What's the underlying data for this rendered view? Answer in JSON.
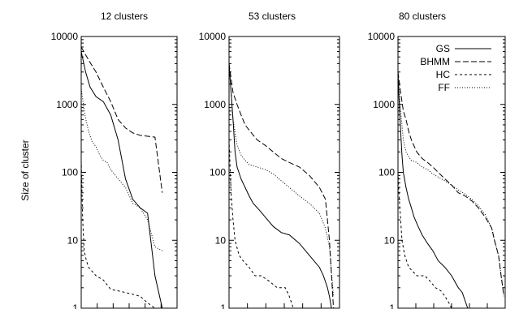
{
  "chart_data": [
    {
      "type": "line",
      "title": "12 clusters",
      "ylabel": "Size of cluster",
      "yscale": "log",
      "ylim": [
        1,
        10000
      ],
      "yticks": [
        1,
        10,
        100,
        1000,
        10000
      ],
      "ytick_labels": [
        "1",
        "10",
        "100",
        "1000",
        "10000"
      ],
      "xlim": [
        0,
        13
      ],
      "xtick_count": 6,
      "series": [
        {
          "name": "GS",
          "x": [
            0,
            0.6,
            1.2,
            2,
            3,
            4,
            5,
            6,
            7,
            8,
            9,
            10,
            11
          ],
          "y": [
            6000,
            3000,
            1800,
            1300,
            1100,
            700,
            300,
            80,
            40,
            30,
            25,
            3,
            1
          ]
        },
        {
          "name": "BHMM",
          "x": [
            0,
            1,
            2,
            3,
            4,
            5,
            6,
            7,
            8,
            9,
            10,
            11
          ],
          "y": [
            7000,
            4500,
            3000,
            1800,
            1100,
            600,
            450,
            380,
            350,
            340,
            330,
            50
          ]
        },
        {
          "name": "HC",
          "x": [
            0,
            0.2,
            0.4,
            0.7,
            1,
            2,
            3,
            4,
            5,
            6,
            7,
            8,
            9,
            10,
            11
          ],
          "y": [
            150,
            20,
            7,
            5,
            4,
            3,
            2.6,
            1.9,
            1.8,
            1.7,
            1.6,
            1.5,
            1.2,
            1,
            1
          ]
        },
        {
          "name": "FF",
          "x": [
            0,
            0.5,
            1,
            1.5,
            2,
            2.5,
            3,
            3.5,
            4,
            5,
            6,
            7,
            8,
            9,
            10,
            11
          ],
          "y": [
            1700,
            700,
            400,
            280,
            240,
            180,
            150,
            140,
            110,
            80,
            60,
            35,
            30,
            20,
            8,
            7
          ]
        }
      ]
    },
    {
      "type": "line",
      "title": "53 clusters",
      "yscale": "log",
      "ylim": [
        1,
        10000
      ],
      "yticks": [
        1,
        10,
        100,
        1000,
        10000
      ],
      "ytick_labels": [
        "1",
        "10",
        "100",
        "1000",
        "10000"
      ],
      "xlim": [
        0,
        55
      ],
      "xtick_count": 6,
      "series": [
        {
          "name": "GS",
          "x": [
            0,
            1,
            2,
            3,
            4,
            6,
            8,
            10,
            12,
            15,
            18,
            22,
            26,
            30,
            35,
            40,
            45,
            47,
            49,
            50,
            51
          ],
          "y": [
            4000,
            1500,
            600,
            200,
            120,
            80,
            60,
            45,
            35,
            28,
            22,
            16,
            13,
            12,
            9,
            6,
            4,
            3,
            2,
            1.5,
            1
          ]
        },
        {
          "name": "BHMM",
          "x": [
            0,
            2,
            4,
            6,
            8,
            10,
            14,
            18,
            22,
            26,
            30,
            35,
            40,
            45,
            48,
            50,
            52
          ],
          "y": [
            4000,
            1500,
            1000,
            700,
            500,
            420,
            300,
            250,
            200,
            160,
            140,
            120,
            90,
            60,
            40,
            10,
            1
          ]
        },
        {
          "name": "HC",
          "x": [
            0,
            1,
            2,
            3,
            5,
            7,
            10,
            13,
            16,
            20,
            24,
            28,
            30,
            32,
            35
          ],
          "y": [
            300,
            50,
            20,
            10,
            6,
            5,
            4,
            3,
            3,
            2.5,
            2,
            2,
            1.5,
            1,
            1
          ]
        },
        {
          "name": "FF",
          "x": [
            0,
            2,
            4,
            6,
            8,
            10,
            14,
            18,
            22,
            26,
            30,
            35,
            40,
            45,
            48,
            50,
            52
          ],
          "y": [
            4000,
            600,
            250,
            180,
            150,
            130,
            120,
            110,
            95,
            75,
            60,
            45,
            35,
            25,
            15,
            8,
            1.5
          ]
        }
      ]
    },
    {
      "type": "line",
      "title": "80 clusters",
      "yscale": "log",
      "ylim": [
        1,
        10000
      ],
      "yticks": [
        1,
        10,
        100,
        1000,
        10000
      ],
      "ytick_labels": [
        "1",
        "10",
        "100",
        "1000",
        "10000"
      ],
      "xlim": [
        0,
        80
      ],
      "xtick_count": 6,
      "legend": {
        "position": "top-right",
        "entries": [
          "GS",
          "BHMM",
          "HC",
          "FF"
        ]
      },
      "series": [
        {
          "name": "GS",
          "x": [
            0,
            1,
            2,
            3,
            4,
            6,
            8,
            10,
            12,
            15,
            18,
            22,
            26,
            30,
            35,
            40,
            45,
            48,
            50,
            52
          ],
          "y": [
            3000,
            1000,
            400,
            180,
            100,
            60,
            40,
            30,
            22,
            16,
            12,
            9,
            7,
            5,
            4,
            3,
            2,
            1.7,
            1.3,
            1
          ]
        },
        {
          "name": "BHMM",
          "x": [
            0,
            2,
            4,
            6,
            8,
            10,
            14,
            18,
            22,
            26,
            30,
            35,
            40,
            45,
            50,
            55,
            60,
            65,
            70,
            72,
            75,
            77,
            79
          ],
          "y": [
            3000,
            1500,
            800,
            600,
            400,
            300,
            200,
            160,
            140,
            120,
            100,
            80,
            65,
            50,
            45,
            38,
            30,
            22,
            15,
            10,
            6,
            3,
            1.5
          ]
        },
        {
          "name": "HC",
          "x": [
            0,
            1,
            2,
            3,
            5,
            8,
            11,
            14,
            17,
            20,
            24,
            28,
            32,
            35,
            38,
            40
          ],
          "y": [
            100,
            40,
            20,
            10,
            6,
            4,
            3.5,
            3,
            3,
            3,
            2.5,
            2,
            1.8,
            1.5,
            1.2,
            1
          ]
        },
        {
          "name": "FF",
          "x": [
            0,
            2,
            4,
            6,
            8,
            10,
            14,
            18,
            22,
            26,
            30,
            35,
            40,
            45,
            50,
            55,
            60,
            65,
            70,
            72,
            75,
            77,
            79
          ],
          "y": [
            3000,
            800,
            300,
            200,
            170,
            150,
            140,
            120,
            110,
            95,
            85,
            75,
            65,
            55,
            48,
            40,
            32,
            24,
            15,
            10,
            6,
            3,
            1.5
          ]
        }
      ]
    }
  ]
}
